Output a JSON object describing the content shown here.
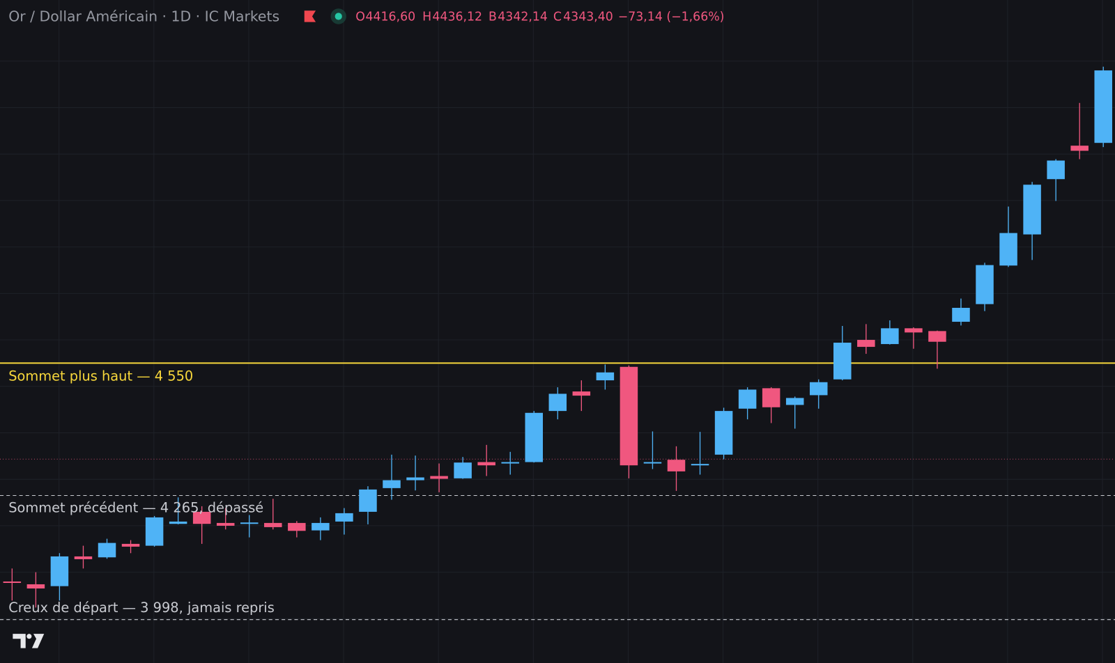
{
  "header": {
    "title": "Or / Dollar Américain · 1D · IC Markets",
    "ohlc": [
      {
        "key": "O",
        "value": 4416.6,
        "label": "4416,60"
      },
      {
        "key": "H",
        "value": 4436.12,
        "label": "4436,12"
      },
      {
        "key": "B",
        "value": 4342.14,
        "label": "4342,14"
      },
      {
        "key": "C",
        "value": 4343.4,
        "label": "4343,40"
      }
    ],
    "change": "−73,14 (−1,66%)"
  },
  "chart_data": {
    "type": "candlestick",
    "open": [
      4080,
      4074,
      4070,
      4134,
      4132,
      4161,
      4157,
      4204,
      4230,
      4206,
      4204,
      4206,
      4206,
      4190,
      4209,
      4230,
      4281,
      4298,
      4307,
      4302,
      4337,
      4334,
      4337,
      4447,
      4489,
      4513,
      4542,
      4334,
      4342,
      4330,
      4353,
      4452,
      4496,
      4460,
      4481,
      4515,
      4600,
      4591,
      4625,
      4619,
      4639,
      4677,
      4760,
      4827,
      4946,
      5018,
      5024
    ],
    "high": [
      4108,
      4100,
      4141,
      4157,
      4172,
      4169,
      4221,
      4261,
      4242,
      4238,
      4223,
      4258,
      4210,
      4218,
      4238,
      4285,
      4353,
      4351,
      4334,
      4348,
      4374,
      4359,
      4447,
      4498,
      4513,
      4547,
      4545,
      4403,
      4371,
      4402,
      4454,
      4498,
      4498,
      4478,
      4515,
      4630,
      4634,
      4642,
      4627,
      4620,
      4689,
      4766,
      4887,
      4940,
      4989,
      5110,
      5188
    ],
    "low": [
      4039,
      4024,
      4039,
      4108,
      4129,
      4141,
      4155,
      4203,
      4161,
      4192,
      4175,
      4192,
      4175,
      4169,
      4181,
      4203,
      4256,
      4276,
      4272,
      4301,
      4307,
      4310,
      4336,
      4429,
      4447,
      4493,
      4302,
      4322,
      4275,
      4310,
      4343,
      4429,
      4421,
      4409,
      4452,
      4513,
      4570,
      4590,
      4581,
      4538,
      4631,
      4662,
      4757,
      4772,
      4899,
      4989,
      5015
    ],
    "close": [
      4077,
      4065,
      4134,
      4128,
      4163,
      4155,
      4218,
      4209,
      4204,
      4200,
      4207,
      4197,
      4189,
      4206,
      4227,
      4278,
      4298,
      4304,
      4301,
      4336,
      4330,
      4337,
      4443,
      4484,
      4480,
      4530,
      4330,
      4337,
      4317,
      4333,
      4447,
      4493,
      4455,
      4475,
      4509,
      4594,
      4585,
      4625,
      4616,
      4596,
      4669,
      4761,
      4830,
      4934,
      4986,
      5007,
      5180
    ],
    "up_color": "#4fb3f6",
    "down_color": "#f0577f",
    "ylim": [
      3900,
      5330
    ],
    "yticks": [
      4000,
      4100,
      4200,
      4300,
      4400,
      4500,
      4600,
      4700,
      4800,
      4900,
      5000,
      5100,
      5200
    ],
    "grid": true,
    "levels": [
      {
        "value": 4550,
        "label": "Sommet plus haut — 4 550",
        "color": "#f7d73b",
        "style": "solid"
      },
      {
        "value": 4265,
        "label": "Sommet précédent — 4 265, dépassé",
        "color": "#c9cbd1",
        "style": "dashed"
      },
      {
        "value": 3998,
        "label": "Creux de départ — 3 998, jamais repris",
        "color": "#c9cbd1",
        "style": "dashed"
      }
    ]
  }
}
